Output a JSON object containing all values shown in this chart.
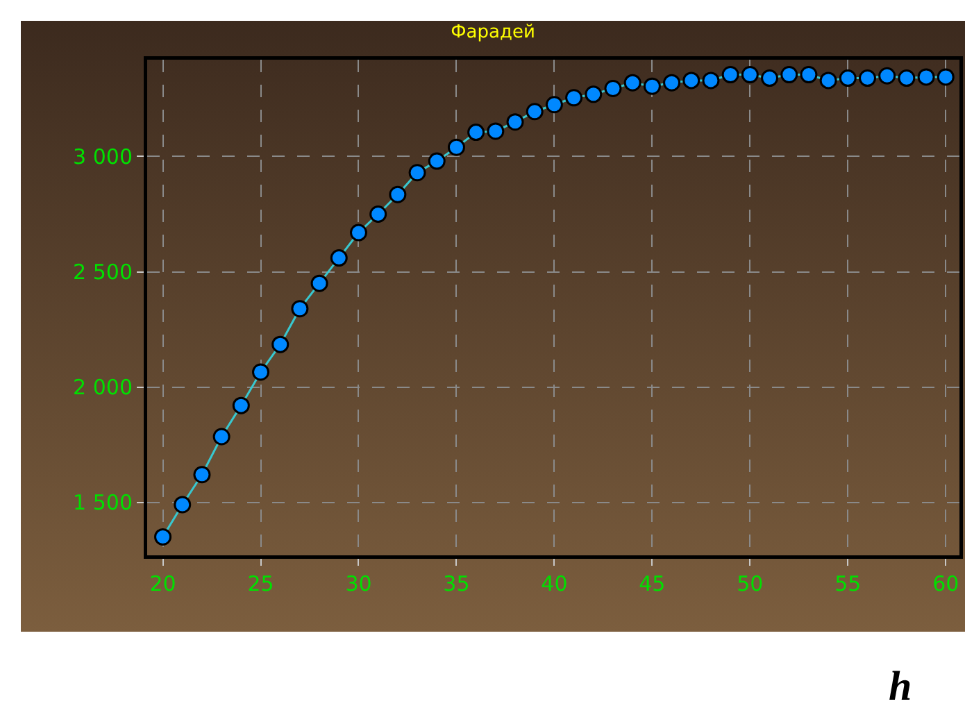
{
  "chart_data": {
    "type": "line",
    "title": "Фарадей",
    "x": [
      20,
      21,
      22,
      23,
      24,
      25,
      26,
      27,
      28,
      29,
      30,
      31,
      32,
      33,
      34,
      35,
      36,
      37,
      38,
      39,
      40,
      41,
      42,
      43,
      44,
      45,
      46,
      47,
      48,
      49,
      50,
      51,
      52,
      53,
      54,
      55,
      56,
      57,
      58,
      59,
      60
    ],
    "series": [
      {
        "color": "#0088ff",
        "values": [
          1350,
          1490,
          1620,
          1785,
          1920,
          2065,
          2185,
          2340,
          2450,
          2560,
          2670,
          2750,
          2835,
          2930,
          2980,
          3040,
          3105,
          3110,
          3150,
          3195,
          3225,
          3255,
          3270,
          3295,
          3320,
          3305,
          3320,
          3330,
          3330,
          3355,
          3355,
          3340,
          3355,
          3355,
          3330,
          3340,
          3340,
          3350,
          3340,
          3345,
          3345
        ]
      }
    ],
    "xlim": [
      19.2,
      60.7
    ],
    "xticks": [
      20,
      25,
      30,
      35,
      40,
      45,
      50,
      55,
      60
    ],
    "ylim": [
      1270,
      3420
    ],
    "yticks": [
      {
        "value": 1500,
        "label": "1 500"
      },
      {
        "value": 2000,
        "label": "2 000"
      },
      {
        "value": 2500,
        "label": "2 500"
      },
      {
        "value": 3000,
        "label": "3 000"
      }
    ],
    "grid": true,
    "marker": "circle",
    "line_style": "solid",
    "annotations": [
      "h"
    ]
  }
}
